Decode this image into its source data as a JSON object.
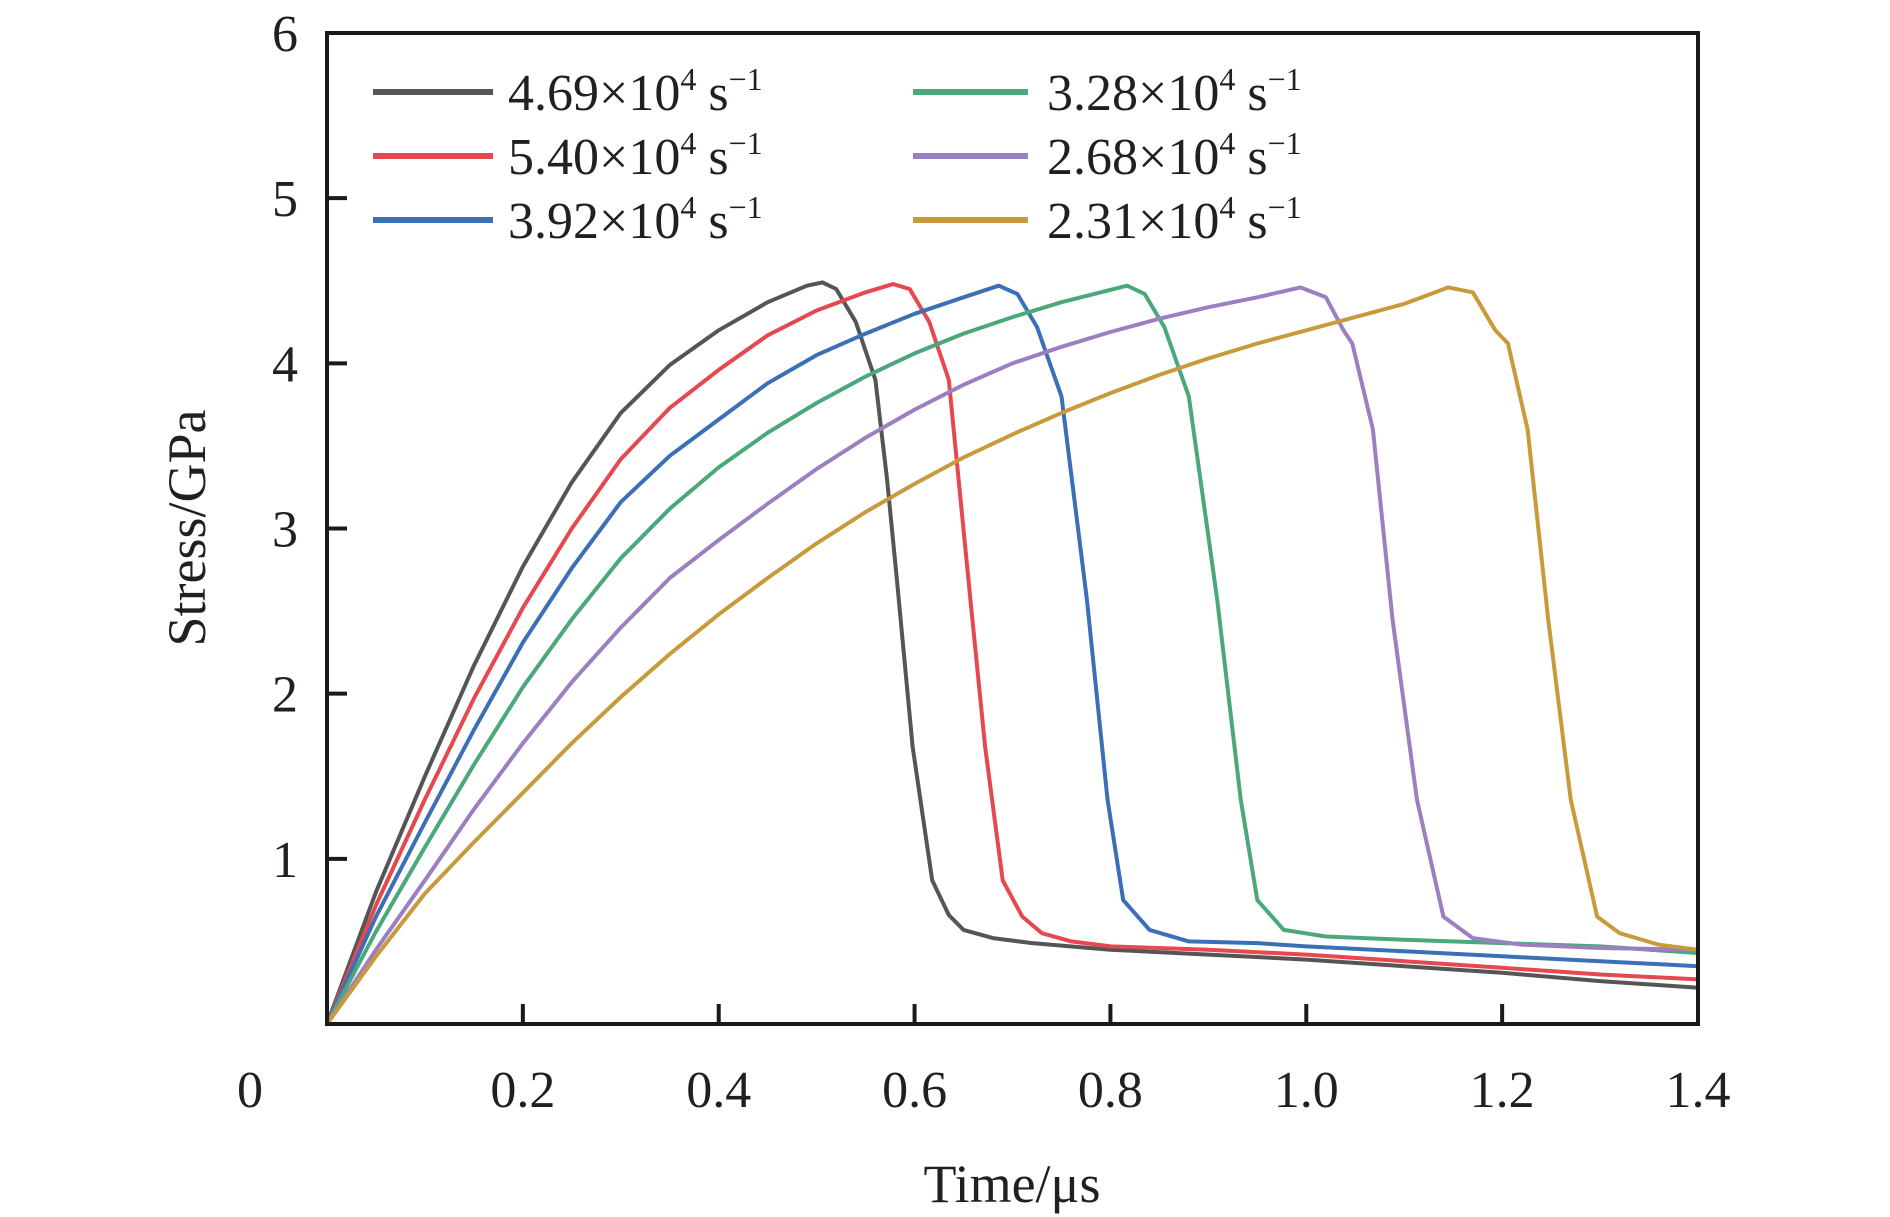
{
  "chart_data": {
    "type": "line",
    "title": "",
    "xlabel": "Time/μs",
    "ylabel": "Stress/GPa",
    "xlim": [
      0,
      1.4
    ],
    "ylim": [
      0,
      6
    ],
    "xticks": [
      0,
      0.2,
      0.4,
      0.6,
      0.8,
      1.0,
      1.2,
      1.4
    ],
    "xtick_labels": [
      "0",
      "0.2",
      "0.4",
      "0.6",
      "0.8",
      "1.0",
      "1.2",
      "1.4"
    ],
    "yticks": [
      1,
      2,
      3,
      4,
      5,
      6
    ],
    "ytick_labels": [
      "1",
      "2",
      "3",
      "4",
      "5",
      "6"
    ],
    "grid": false,
    "legend_position": "top-left",
    "legend_columns": 2,
    "series": [
      {
        "name": "4.69×10^4 s^-1",
        "label_main": "4.69×10",
        "label_exp": "4",
        "label_unit": "s",
        "label_unit_exp": "−1",
        "color": "#555555",
        "x": [
          0,
          0.05,
          0.1,
          0.15,
          0.2,
          0.25,
          0.3,
          0.35,
          0.4,
          0.45,
          0.49,
          0.506,
          0.52,
          0.54,
          0.56,
          0.572,
          0.582,
          0.598,
          0.618,
          0.635,
          0.65,
          0.68,
          0.72,
          0.8,
          0.9,
          1.0,
          1.1,
          1.2,
          1.3,
          1.4
        ],
        "y": [
          0,
          0.8,
          1.5,
          2.17,
          2.77,
          3.28,
          3.7,
          3.99,
          4.2,
          4.37,
          4.47,
          4.49,
          4.45,
          4.25,
          3.9,
          3.29,
          2.69,
          1.68,
          0.87,
          0.66,
          0.57,
          0.52,
          0.49,
          0.45,
          0.42,
          0.39,
          0.35,
          0.31,
          0.26,
          0.22
        ]
      },
      {
        "name": "5.40×10^4 s^-1",
        "label_main": "5.40×10",
        "label_exp": "4",
        "label_unit": "s",
        "label_unit_exp": "−1",
        "color": "#e5484f",
        "x": [
          0,
          0.05,
          0.1,
          0.15,
          0.2,
          0.25,
          0.3,
          0.35,
          0.4,
          0.45,
          0.5,
          0.55,
          0.578,
          0.595,
          0.615,
          0.635,
          0.657,
          0.672,
          0.69,
          0.71,
          0.73,
          0.76,
          0.8,
          0.9,
          1.0,
          1.1,
          1.2,
          1.3,
          1.4
        ],
        "y": [
          0,
          0.72,
          1.36,
          1.97,
          2.52,
          3.0,
          3.42,
          3.73,
          3.96,
          4.17,
          4.32,
          4.43,
          4.48,
          4.45,
          4.25,
          3.9,
          2.57,
          1.68,
          0.87,
          0.65,
          0.55,
          0.5,
          0.47,
          0.45,
          0.42,
          0.38,
          0.34,
          0.3,
          0.27
        ]
      },
      {
        "name": "3.92×10^4 s^-1",
        "label_main": "3.92×10",
        "label_exp": "4",
        "label_unit": "s",
        "label_unit_exp": "−1",
        "color": "#3b6fb6",
        "x": [
          0,
          0.05,
          0.1,
          0.15,
          0.2,
          0.25,
          0.3,
          0.35,
          0.4,
          0.45,
          0.5,
          0.55,
          0.6,
          0.65,
          0.686,
          0.705,
          0.725,
          0.75,
          0.776,
          0.797,
          0.813,
          0.84,
          0.88,
          0.95,
          1.0,
          1.1,
          1.2,
          1.3,
          1.4
        ],
        "y": [
          0,
          0.65,
          1.22,
          1.78,
          2.31,
          2.76,
          3.16,
          3.44,
          3.66,
          3.88,
          4.05,
          4.18,
          4.3,
          4.4,
          4.47,
          4.42,
          4.22,
          3.8,
          2.57,
          1.36,
          0.75,
          0.57,
          0.5,
          0.49,
          0.47,
          0.44,
          0.41,
          0.38,
          0.35
        ]
      },
      {
        "name": "3.28×10^4 s^-1",
        "label_main": "3.28×10",
        "label_exp": "4",
        "label_unit": "s",
        "label_unit_exp": "−1",
        "color": "#4aa87a",
        "x": [
          0,
          0.05,
          0.1,
          0.15,
          0.2,
          0.25,
          0.3,
          0.35,
          0.4,
          0.45,
          0.5,
          0.55,
          0.6,
          0.65,
          0.7,
          0.75,
          0.817,
          0.835,
          0.855,
          0.88,
          0.909,
          0.933,
          0.95,
          0.977,
          1.02,
          1.1,
          1.2,
          1.3,
          1.4
        ],
        "y": [
          0,
          0.56,
          1.07,
          1.57,
          2.04,
          2.45,
          2.82,
          3.12,
          3.37,
          3.58,
          3.76,
          3.92,
          4.06,
          4.18,
          4.28,
          4.37,
          4.47,
          4.42,
          4.22,
          3.8,
          2.57,
          1.36,
          0.75,
          0.57,
          0.53,
          0.51,
          0.49,
          0.47,
          0.43
        ]
      },
      {
        "name": "2.68×10^4 s^-1",
        "label_main": "2.68×10",
        "label_exp": "4",
        "label_unit": "s",
        "label_unit_exp": "−1",
        "color": "#9b7fc0",
        "x": [
          0,
          0.05,
          0.1,
          0.15,
          0.2,
          0.25,
          0.3,
          0.35,
          0.4,
          0.45,
          0.5,
          0.55,
          0.6,
          0.65,
          0.7,
          0.75,
          0.8,
          0.85,
          0.9,
          0.95,
          0.994,
          1.02,
          1.038,
          1.047,
          1.068,
          1.088,
          1.113,
          1.14,
          1.17,
          1.22,
          1.3,
          1.4
        ],
        "y": [
          0,
          0.45,
          0.87,
          1.3,
          1.7,
          2.07,
          2.4,
          2.7,
          2.93,
          3.15,
          3.36,
          3.55,
          3.72,
          3.87,
          4.0,
          4.1,
          4.19,
          4.27,
          4.34,
          4.4,
          4.46,
          4.4,
          4.2,
          4.12,
          3.6,
          2.45,
          1.36,
          0.65,
          0.52,
          0.48,
          0.46,
          0.45
        ]
      },
      {
        "name": "2.31×10^4 s^-1",
        "label_main": "2.31×10",
        "label_exp": "4",
        "label_unit": "s",
        "label_unit_exp": "−1",
        "color": "#c99a3c",
        "x": [
          0,
          0.05,
          0.1,
          0.15,
          0.2,
          0.25,
          0.3,
          0.35,
          0.4,
          0.45,
          0.5,
          0.55,
          0.6,
          0.65,
          0.7,
          0.75,
          0.8,
          0.85,
          0.9,
          0.95,
          1.0,
          1.05,
          1.1,
          1.145,
          1.17,
          1.193,
          1.206,
          1.226,
          1.247,
          1.27,
          1.297,
          1.32,
          1.36,
          1.4
        ],
        "y": [
          0,
          0.41,
          0.79,
          1.1,
          1.4,
          1.7,
          1.98,
          2.24,
          2.48,
          2.7,
          2.91,
          3.1,
          3.27,
          3.43,
          3.57,
          3.7,
          3.82,
          3.93,
          4.03,
          4.12,
          4.2,
          4.28,
          4.36,
          4.46,
          4.43,
          4.2,
          4.12,
          3.6,
          2.45,
          1.36,
          0.65,
          0.55,
          0.48,
          0.45
        ]
      }
    ]
  }
}
